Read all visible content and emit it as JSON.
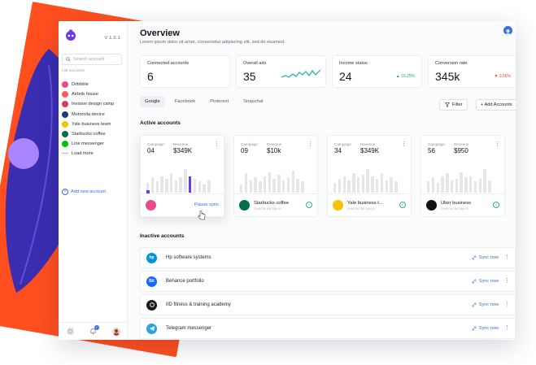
{
  "sidebar": {
    "version": "V 1.0.1",
    "search_placeholder": "Search account",
    "list_heading": "List accounts",
    "items": [
      {
        "label": "Dribbble",
        "icon": "dribbble-icon",
        "color": "#ea4c89"
      },
      {
        "label": "Airbnb house",
        "icon": "airbnb-icon",
        "color": "#ff5a5f"
      },
      {
        "label": "Invision design camp",
        "icon": "invision-icon",
        "color": "#dc395f"
      },
      {
        "label": "Motorolla device",
        "icon": "motorola-icon",
        "color": "#1f3d7a"
      },
      {
        "label": "Yale business team",
        "icon": "yale-icon",
        "color": "#f5c400"
      },
      {
        "label": "Starbucks coffee",
        "icon": "starbucks-icon",
        "color": "#00704a"
      },
      {
        "label": "Line messenger",
        "icon": "line-icon",
        "color": "#00c300"
      },
      {
        "label": "Load more",
        "icon": "more-dots-icon",
        "color": "#666666"
      }
    ],
    "add_new": "Add new account",
    "notification_count": "2"
  },
  "header": {
    "title": "Overview",
    "subtitle": "Lorem ipsum dolor sit amet, consectetur adipiscing elit, sed do eiusmod."
  },
  "stats": [
    {
      "label": "Connected accounts",
      "value": "6"
    },
    {
      "label": "Overall ads",
      "value": "35"
    },
    {
      "label": "Income status",
      "value": "24",
      "change": "▲ 10.25%",
      "trend": "up"
    },
    {
      "label": "Conversion rate",
      "value": "345k",
      "change": "▼ 3.56%",
      "trend": "down"
    }
  ],
  "tabs": [
    "Google",
    "Facebook",
    "Pinterest",
    "Snapchat"
  ],
  "active_tab": "Google",
  "buttons": {
    "filter": "Filter",
    "add_accounts": "+ Add Accounts"
  },
  "active_section": "Active accounts",
  "inactive_section": "Inactive accounts",
  "campaign_label": "Campaign",
  "revenue_label": "Revenue",
  "check_details": "CHECK DETAILS",
  "pause_sync": "Pause sync",
  "sync_now": "Sync now",
  "active_cards": [
    {
      "campaign": "04",
      "revenue": "$349K",
      "name": "",
      "logo": "dribbble-icon",
      "color": "#ea4c89",
      "state": "active",
      "bars": [
        0.35,
        0.55,
        0.4,
        0.6,
        0.5,
        0.7,
        0.45,
        0.55,
        0.85,
        0.6,
        0.5,
        0.4,
        0.3,
        0.45
      ],
      "highlight": 9
    },
    {
      "campaign": "09",
      "revenue": "$10k",
      "name": "Starbucks coffee",
      "logo": "starbucks-icon",
      "color": "#00704a",
      "state": "ok",
      "bars": [
        0.3,
        0.7,
        0.45,
        0.55,
        0.4,
        0.6,
        0.75,
        0.5,
        0.65,
        0.45,
        0.55,
        0.8,
        0.5,
        0.4
      ]
    },
    {
      "campaign": "34",
      "revenue": "$349K",
      "name": "Yale business t...",
      "logo": "yale-icon",
      "color": "#f5c400",
      "state": "ok",
      "bars": [
        0.35,
        0.5,
        0.6,
        0.45,
        0.7,
        0.55,
        0.65,
        0.85,
        0.6,
        0.5,
        0.7,
        0.45,
        0.55,
        0.4
      ]
    },
    {
      "campaign": "56",
      "revenue": "$950",
      "name": "Uber business",
      "logo": "uber-icon",
      "color": "#111111",
      "state": "ok",
      "bars": [
        0.4,
        0.55,
        0.35,
        0.6,
        0.7,
        0.45,
        0.5,
        0.75,
        0.55,
        0.6,
        0.4,
        0.5,
        0.85,
        0.45
      ]
    }
  ],
  "inactive_accounts": [
    {
      "name": "Hp software systems",
      "logo": "hp-icon",
      "color": "#0096d6",
      "glyph": "hp"
    },
    {
      "name": "Behance portfolio",
      "logo": "behance-icon",
      "color": "#1769ff",
      "glyph": "Bē"
    },
    {
      "name": "IID fitness & training academy",
      "logo": "iid-icon",
      "color": "#1a1a1a",
      "glyph": ""
    },
    {
      "name": "Telegram messenger",
      "logo": "telegram-icon",
      "color": "#2aa3de",
      "glyph": ""
    }
  ],
  "colors": {
    "accent": "#3b6ed8",
    "brand": "#6a3be6",
    "bar": "#e4e6ea",
    "bar_active": "#6a3be6"
  }
}
